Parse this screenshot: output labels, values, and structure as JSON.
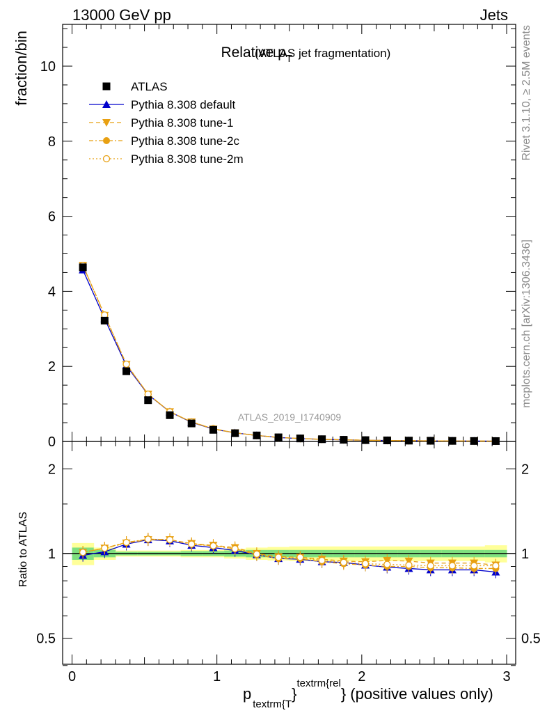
{
  "header": {
    "left": "13000 GeV pp",
    "right": "Jets"
  },
  "main_plot": {
    "title_main": "Relative p",
    "title_sub": "T",
    "title_paren": "(ATLAS jet fragmentation)",
    "ylabel": "fraction/bin",
    "watermark": "ATLAS_2019_I1740909"
  },
  "ratio_plot": {
    "ylabel": "Ratio to ATLAS"
  },
  "xaxis": {
    "label_p": "p",
    "label_sub": "textrm{T",
    "label_sup": "textrm{rel",
    "label_brace": "}",
    "label_rest": "} (positive values only)"
  },
  "side": {
    "rivet": "Rivet 3.1.10, ≥ 2.5M events",
    "mcplots": "mcplots.cern.ch [arXiv:1306.3436]"
  },
  "colors": {
    "data": "#000000",
    "default": "#0000cc",
    "tunes": "#e8a012",
    "band_inner": "#7fe07f",
    "band_outer": "#ffff99"
  },
  "chart_data": [
    {
      "type": "line",
      "title": "Relative p_T (ATLAS jet fragmentation)",
      "xlabel": "p_textrm{T}^textrm{rel} (positive values only)",
      "ylabel": "fraction/bin",
      "xlim": [
        -0.05,
        3.05
      ],
      "ylim": [
        0,
        11.1
      ],
      "yticks": [
        0,
        2,
        4,
        6,
        8,
        10
      ],
      "xticks": [
        0,
        1,
        2,
        3
      ],
      "grid": false,
      "legend_position": "top-left",
      "x": [
        0.075,
        0.225,
        0.375,
        0.525,
        0.675,
        0.825,
        0.975,
        1.125,
        1.275,
        1.425,
        1.575,
        1.725,
        1.875,
        2.025,
        2.175,
        2.325,
        2.475,
        2.625,
        2.775,
        2.925
      ],
      "series": [
        {
          "name": "ATLAS",
          "style": "data",
          "values": [
            4.64,
            3.22,
            1.87,
            1.1,
            0.7,
            0.48,
            0.31,
            0.22,
            0.16,
            0.11,
            0.08,
            0.06,
            0.045,
            0.035,
            0.028,
            0.022,
            0.018,
            0.015,
            0.012,
            0.01
          ]
        },
        {
          "name": "Pythia 8.308 default",
          "style": "default",
          "values": [
            4.57,
            3.27,
            2.02,
            1.25,
            0.79,
            0.51,
            0.33,
            0.23,
            0.16,
            0.105,
            0.077,
            0.056,
            0.042,
            0.032,
            0.025,
            0.02,
            0.016,
            0.013,
            0.011,
            0.009
          ]
        },
        {
          "name": "Pythia 8.308 tune-1",
          "style": "tune1",
          "values": [
            4.69,
            3.36,
            2.05,
            1.26,
            0.79,
            0.52,
            0.33,
            0.23,
            0.16,
            0.108,
            0.078,
            0.058,
            0.043,
            0.034,
            0.027,
            0.021,
            0.017,
            0.014,
            0.011,
            0.009
          ]
        },
        {
          "name": "Pythia 8.308 tune-2c",
          "style": "tune2c",
          "values": [
            4.69,
            3.37,
            2.06,
            1.26,
            0.79,
            0.52,
            0.34,
            0.23,
            0.16,
            0.107,
            0.078,
            0.057,
            0.042,
            0.032,
            0.025,
            0.02,
            0.016,
            0.013,
            0.011,
            0.009
          ]
        },
        {
          "name": "Pythia 8.308 tune-2m",
          "style": "tune2m",
          "values": [
            4.69,
            3.37,
            2.06,
            1.26,
            0.79,
            0.52,
            0.34,
            0.23,
            0.16,
            0.107,
            0.078,
            0.057,
            0.042,
            0.033,
            0.026,
            0.021,
            0.017,
            0.014,
            0.011,
            0.009
          ]
        }
      ]
    },
    {
      "type": "line",
      "ylabel": "Ratio to ATLAS",
      "ylim": [
        0.38,
        2.35
      ],
      "yscale": "log",
      "yticks": [
        0.5,
        1,
        2
      ],
      "reference": 1,
      "band_inner_halfwidth": [
        0.05,
        0.03,
        0.015,
        0.015,
        0.015,
        0.02,
        0.02,
        0.025,
        0.03,
        0.03,
        0.03,
        0.03,
        0.03,
        0.03,
        0.03,
        0.03,
        0.03,
        0.03,
        0.03,
        0.03
      ],
      "band_outer_halfwidth": [
        0.09,
        0.05,
        0.025,
        0.025,
        0.025,
        0.03,
        0.03,
        0.04,
        0.05,
        0.055,
        0.06,
        0.06,
        0.06,
        0.06,
        0.06,
        0.06,
        0.06,
        0.06,
        0.06,
        0.07
      ],
      "x": [
        0.075,
        0.225,
        0.375,
        0.525,
        0.675,
        0.825,
        0.975,
        1.125,
        1.275,
        1.425,
        1.575,
        1.725,
        1.875,
        2.025,
        2.175,
        2.325,
        2.475,
        2.625,
        2.775,
        2.925
      ],
      "series": [
        {
          "name": "Pythia 8.308 default",
          "style": "default",
          "values": [
            0.985,
            1.015,
            1.08,
            1.12,
            1.11,
            1.07,
            1.05,
            1.025,
            0.99,
            0.96,
            0.955,
            0.935,
            0.93,
            0.91,
            0.895,
            0.885,
            0.875,
            0.875,
            0.875,
            0.86
          ]
        },
        {
          "name": "Pythia 8.308 tune-1",
          "style": "tune1",
          "values": [
            1.01,
            1.045,
            1.09,
            1.12,
            1.12,
            1.085,
            1.07,
            1.05,
            1.0,
            0.975,
            0.97,
            0.955,
            0.94,
            0.935,
            0.945,
            0.94,
            0.925,
            0.925,
            0.925,
            0.91
          ]
        },
        {
          "name": "Pythia 8.308 tune-2c",
          "style": "tune2c",
          "values": [
            1.01,
            1.045,
            1.095,
            1.125,
            1.12,
            1.08,
            1.065,
            1.04,
            0.99,
            0.96,
            0.96,
            0.935,
            0.92,
            0.91,
            0.9,
            0.9,
            0.89,
            0.89,
            0.885,
            0.885
          ]
        },
        {
          "name": "Pythia 8.308 tune-2m",
          "style": "tune2m",
          "values": [
            1.01,
            1.045,
            1.095,
            1.125,
            1.12,
            1.08,
            1.065,
            1.04,
            0.995,
            0.97,
            0.97,
            0.945,
            0.93,
            0.92,
            0.915,
            0.91,
            0.905,
            0.905,
            0.905,
            0.905
          ]
        }
      ]
    }
  ]
}
